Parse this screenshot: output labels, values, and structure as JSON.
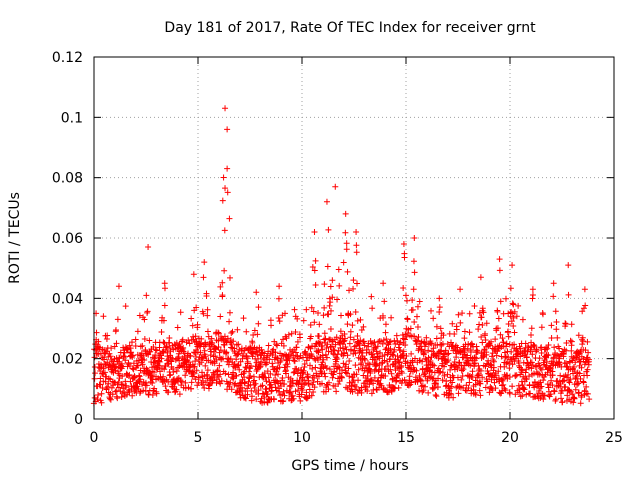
{
  "chart_data": {
    "type": "scatter",
    "title": "Day 181 of 2017, Rate Of TEC Index for receiver grnt",
    "xlabel": "GPS time / hours",
    "ylabel": "ROTI / TECUs",
    "xlim": [
      0,
      25
    ],
    "ylim": [
      0,
      0.12
    ],
    "xticks": [
      0,
      5,
      10,
      15,
      20,
      25
    ],
    "xtick_labels": [
      "0",
      "5",
      "10",
      "15",
      "20",
      "25"
    ],
    "yticks": [
      0,
      0.02,
      0.04,
      0.06,
      0.08,
      0.1,
      0.12
    ],
    "ytick_labels": [
      "0",
      "0.02",
      "0.04",
      "0.06",
      "0.08",
      "0.1",
      "0.12"
    ],
    "grid": true,
    "marker": "+",
    "color": "#ff0000",
    "series": [
      {
        "name": "ROTI",
        "x_range": [
          0,
          23.8
        ],
        "sample_interval_hours": 0.02,
        "typical_range": [
          0.005,
          0.03
        ],
        "baseline_by_hour": [
          [
            0,
            0.014
          ],
          [
            1,
            0.015
          ],
          [
            2,
            0.016
          ],
          [
            3,
            0.017
          ],
          [
            4,
            0.017
          ],
          [
            5,
            0.018
          ],
          [
            6,
            0.02
          ],
          [
            7,
            0.016
          ],
          [
            8,
            0.014
          ],
          [
            9,
            0.014
          ],
          [
            10,
            0.015
          ],
          [
            11,
            0.018
          ],
          [
            12,
            0.018
          ],
          [
            13,
            0.017
          ],
          [
            14,
            0.017
          ],
          [
            15,
            0.02
          ],
          [
            16,
            0.017
          ],
          [
            17,
            0.016
          ],
          [
            18,
            0.016
          ],
          [
            19,
            0.017
          ],
          [
            20,
            0.017
          ],
          [
            21,
            0.016
          ],
          [
            22,
            0.015
          ],
          [
            23,
            0.014
          ]
        ],
        "upper_envelope": [
          [
            0.1,
            0.035
          ],
          [
            1.2,
            0.044
          ],
          [
            2.6,
            0.057
          ],
          [
            3.4,
            0.045
          ],
          [
            4.8,
            0.048
          ],
          [
            5.3,
            0.052
          ],
          [
            6.3,
            0.103
          ],
          [
            6.4,
            0.096
          ],
          [
            6.4,
            0.083
          ],
          [
            7.8,
            0.042
          ],
          [
            8.9,
            0.044
          ],
          [
            10.6,
            0.062
          ],
          [
            11.2,
            0.072
          ],
          [
            11.6,
            0.077
          ],
          [
            12.1,
            0.068
          ],
          [
            12.6,
            0.062
          ],
          [
            13.9,
            0.045
          ],
          [
            14.9,
            0.058
          ],
          [
            15.4,
            0.06
          ],
          [
            16.6,
            0.04
          ],
          [
            17.6,
            0.043
          ],
          [
            18.6,
            0.047
          ],
          [
            19.5,
            0.053
          ],
          [
            20.1,
            0.051
          ],
          [
            21.1,
            0.043
          ],
          [
            22.1,
            0.045
          ],
          [
            22.8,
            0.051
          ],
          [
            23.6,
            0.043
          ]
        ]
      }
    ]
  }
}
